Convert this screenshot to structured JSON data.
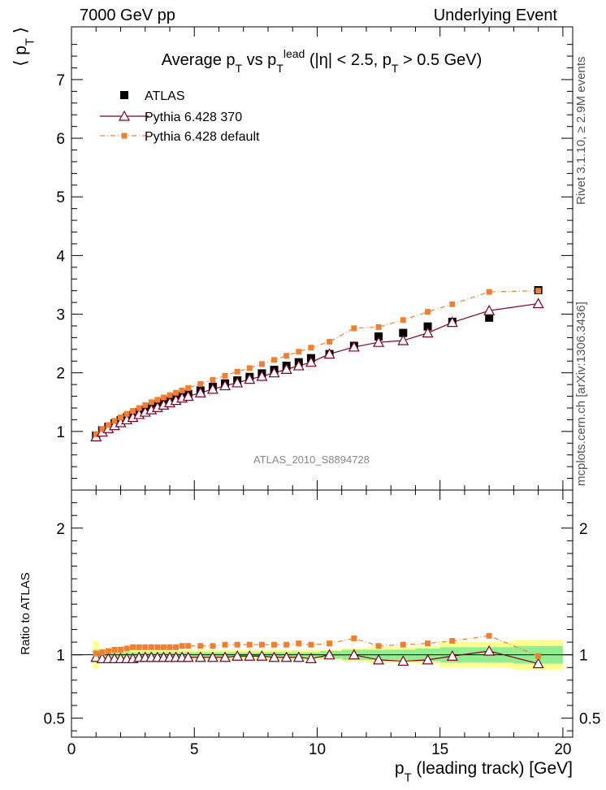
{
  "header": {
    "left": "7000 GeV pp",
    "right": "Underlying Event"
  },
  "side_labels": {
    "rivet": "Rivet 3.1.10, ≥ 2.9M events",
    "mcplots": "mcplots.cern.ch [arXiv:1306.3436]"
  },
  "reference_label": "ATLAS_2010_S8894728",
  "chart_data": [
    {
      "type": "scatter",
      "title": "Average p_T vs p_T^lead (|η| < 2.5, p_T > 0.5 GeV)",
      "ylabel": "⟨ p_T ⟩",
      "xlabel": "p_T (leading track) [GeV]",
      "xlim": [
        0,
        20.4
      ],
      "ylim": [
        0,
        7.9
      ],
      "x_ticks": [
        "0",
        "5",
        "10",
        "15",
        "20"
      ],
      "y_ticks": [
        "1",
        "2",
        "3",
        "4",
        "5",
        "6",
        "7"
      ],
      "legend_position": "top-left",
      "x": [
        1.0,
        1.25,
        1.5,
        1.75,
        2.0,
        2.25,
        2.5,
        2.75,
        3.0,
        3.25,
        3.5,
        3.75,
        4.0,
        4.25,
        4.5,
        4.75,
        5.25,
        5.75,
        6.25,
        6.75,
        7.25,
        7.75,
        8.25,
        8.75,
        9.25,
        9.75,
        10.5,
        11.5,
        12.5,
        13.5,
        14.5,
        15.5,
        17.0,
        19.0
      ],
      "series": [
        {
          "name": "ATLAS",
          "color": "#000000",
          "marker": "square",
          "values": [
            0.93,
            1.02,
            1.08,
            1.14,
            1.19,
            1.24,
            1.28,
            1.33,
            1.37,
            1.41,
            1.45,
            1.49,
            1.53,
            1.57,
            1.61,
            1.64,
            1.7,
            1.76,
            1.82,
            1.87,
            1.93,
            1.99,
            2.05,
            2.12,
            2.18,
            2.25,
            2.32,
            2.46,
            2.62,
            2.68,
            2.79,
            2.87,
            2.94,
            3.41
          ]
        },
        {
          "name": "Pythia 6.428 370",
          "color": "#800020",
          "marker": "open-triangle",
          "values": [
            0.91,
            0.99,
            1.05,
            1.1,
            1.15,
            1.2,
            1.24,
            1.29,
            1.33,
            1.37,
            1.41,
            1.45,
            1.49,
            1.53,
            1.57,
            1.6,
            1.66,
            1.72,
            1.78,
            1.83,
            1.89,
            1.94,
            2.0,
            2.06,
            2.12,
            2.18,
            2.32,
            2.44,
            2.52,
            2.55,
            2.68,
            2.86,
            3.06,
            3.18
          ]
        },
        {
          "name": "Pythia 6.428 default",
          "color": "#f08030",
          "marker": "filled-square",
          "values": [
            0.95,
            1.04,
            1.11,
            1.18,
            1.24,
            1.3,
            1.35,
            1.4,
            1.45,
            1.5,
            1.54,
            1.58,
            1.62,
            1.66,
            1.7,
            1.74,
            1.81,
            1.88,
            1.95,
            2.02,
            2.08,
            2.15,
            2.22,
            2.29,
            2.36,
            2.43,
            2.53,
            2.76,
            2.78,
            2.9,
            3.04,
            3.17,
            3.38,
            3.4
          ]
        }
      ]
    },
    {
      "type": "scatter",
      "ylabel": "Ratio to ATLAS",
      "xlabel": "p_T (leading track) [GeV]",
      "xlim": [
        0,
        20.4
      ],
      "ylim": [
        0.35,
        2.3
      ],
      "x_ticks": [
        "0",
        "5",
        "10",
        "15",
        "20"
      ],
      "y_ticks": [
        "0.5",
        "1",
        "2"
      ],
      "x": [
        1.0,
        1.25,
        1.5,
        1.75,
        2.0,
        2.25,
        2.5,
        2.75,
        3.0,
        3.25,
        3.5,
        3.75,
        4.0,
        4.25,
        4.5,
        4.75,
        5.25,
        5.75,
        6.25,
        6.75,
        7.25,
        7.75,
        8.25,
        8.75,
        9.25,
        9.75,
        10.5,
        11.5,
        12.5,
        13.5,
        14.5,
        15.5,
        17.0,
        19.0
      ],
      "series": [
        {
          "name": "Pythia 6.428 370",
          "color": "#800020",
          "marker": "open-triangle",
          "values": [
            0.98,
            0.97,
            0.97,
            0.97,
            0.97,
            0.97,
            0.97,
            0.98,
            0.98,
            0.98,
            0.98,
            0.98,
            0.98,
            0.98,
            0.98,
            0.98,
            0.98,
            0.98,
            0.98,
            0.99,
            0.99,
            0.99,
            0.98,
            0.98,
            0.98,
            0.97,
            1.0,
            1.0,
            0.96,
            0.95,
            0.96,
            0.99,
            1.03,
            0.93
          ]
        },
        {
          "name": "Pythia 6.428 default",
          "color": "#f08030",
          "marker": "filled-square",
          "values": [
            1.01,
            1.02,
            1.03,
            1.04,
            1.04,
            1.05,
            1.06,
            1.06,
            1.06,
            1.06,
            1.06,
            1.06,
            1.06,
            1.06,
            1.07,
            1.07,
            1.07,
            1.07,
            1.08,
            1.08,
            1.08,
            1.08,
            1.08,
            1.08,
            1.09,
            1.08,
            1.09,
            1.13,
            1.07,
            1.08,
            1.09,
            1.11,
            1.15,
            0.99
          ]
        }
      ],
      "bands": {
        "outer_color": "#ffff90",
        "inner_color": "#90ee90",
        "outer": [
          0.11,
          0.05,
          0.04,
          0.04,
          0.04,
          0.04,
          0.04,
          0.04,
          0.04,
          0.04,
          0.04,
          0.04,
          0.04,
          0.04,
          0.04,
          0.04,
          0.04,
          0.04,
          0.04,
          0.04,
          0.04,
          0.04,
          0.04,
          0.04,
          0.04,
          0.04,
          0.04,
          0.05,
          0.06,
          0.06,
          0.07,
          0.1,
          0.1,
          0.12
        ],
        "inner": [
          0.04,
          0.02,
          0.02,
          0.02,
          0.02,
          0.02,
          0.02,
          0.02,
          0.02,
          0.02,
          0.02,
          0.02,
          0.02,
          0.02,
          0.02,
          0.02,
          0.02,
          0.02,
          0.02,
          0.02,
          0.02,
          0.02,
          0.02,
          0.02,
          0.02,
          0.02,
          0.03,
          0.04,
          0.04,
          0.04,
          0.05,
          0.06,
          0.06,
          0.07
        ]
      }
    }
  ]
}
